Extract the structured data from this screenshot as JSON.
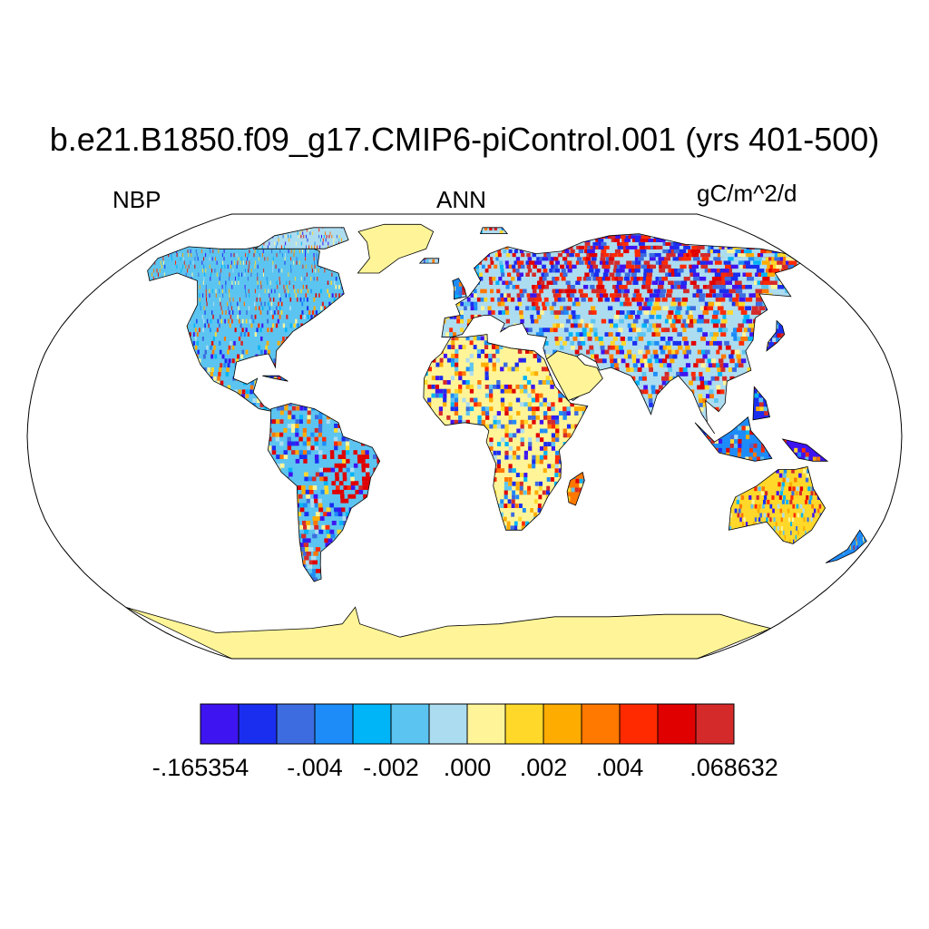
{
  "title": "b.e21.B1850.f09_g17.CMIP6-piControl.001 (yrs 401-500)",
  "left_label": "NBP",
  "center_label": "ANN",
  "right_label": "gC/m^2/d",
  "map": {
    "projection": "Robinson",
    "variable": "NBP",
    "ocean_color": "#ffffff",
    "land_colors": [
      "#3e14f0",
      "#1a2ef0",
      "#3c6ce0",
      "#1e8cf8",
      "#00b4f8",
      "#5cc4f0",
      "#acdcf0",
      "#fff598",
      "#ffd82a",
      "#ffac00",
      "#ff7800",
      "#ff2a00",
      "#e00000",
      "#d42a2a"
    ]
  },
  "colorbar": {
    "colors": [
      "#3e14f0",
      "#1a2ef0",
      "#3c6ce0",
      "#1e8cf8",
      "#00b4f8",
      "#5cc4f0",
      "#acdcf0",
      "#fff598",
      "#ffd82a",
      "#ffac00",
      "#ff7800",
      "#ff2a00",
      "#e00000",
      "#d42a2a"
    ],
    "tick_labels": [
      "-.165354",
      "-.004",
      "-.002",
      ".000",
      ".002",
      ".004",
      ".068632"
    ],
    "min": -0.165354,
    "max": 0.068632
  }
}
